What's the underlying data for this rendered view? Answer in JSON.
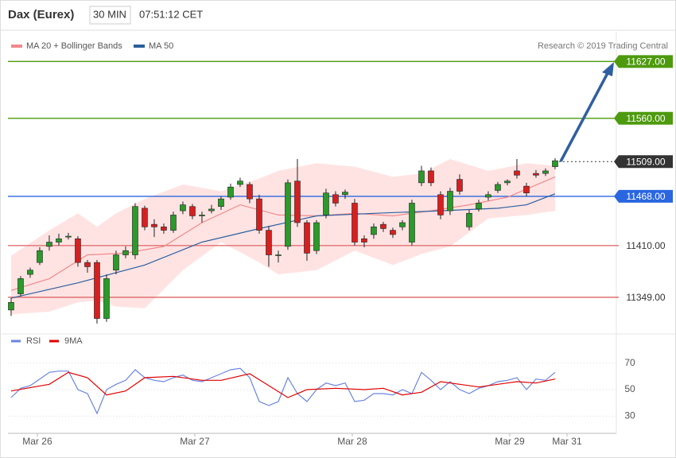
{
  "chart_data": [
    {
      "type": "candlestick",
      "title": "Dax (Eurex)",
      "interval": "30 MIN",
      "time": "07:51:12 CET",
      "source": "Research © 2019 Trading Central",
      "xlim": [
        -0.33,
        63.42
      ],
      "ylim": [
        11287,
        11662
      ],
      "up_color": "#2a9a2a",
      "down_color": "#d62020",
      "open": [
        11334,
        11353,
        11376,
        11390,
        11409,
        11414,
        11420,
        11418,
        11390,
        11390,
        11324,
        11381,
        11399,
        11399,
        11454,
        11435,
        11432,
        11428,
        11451,
        11456,
        11445,
        11451,
        11456,
        11467,
        11482,
        11482,
        11465,
        11428,
        11399,
        11409,
        11486,
        11437,
        11404,
        11446,
        11470,
        11470,
        11460,
        11418,
        11423,
        11435,
        11428,
        11432,
        11414,
        11484,
        11498,
        11470,
        11451,
        11488,
        11432,
        11453,
        11467,
        11475,
        11484,
        11498,
        11480,
        11495,
        11495,
        11503
      ],
      "high": [
        11348,
        11374,
        11384,
        11408,
        11422,
        11424,
        11425,
        11421,
        11393,
        11393,
        11376,
        11404,
        11409,
        11460,
        11457,
        11441,
        11436,
        11450,
        11462,
        11459,
        11450,
        11458,
        11468,
        11483,
        11490,
        11485,
        11470,
        11433,
        11404,
        11488,
        11512,
        11440,
        11440,
        11477,
        11474,
        11476,
        11465,
        11422,
        11436,
        11438,
        11431,
        11440,
        11464,
        11504,
        11502,
        11474,
        11478,
        11494,
        11452,
        11464,
        11474,
        11485,
        11488,
        11512,
        11484,
        11499,
        11501,
        11513
      ],
      "low": [
        11327,
        11350,
        11372,
        11387,
        11404,
        11410,
        11417,
        11385,
        11378,
        11318,
        11320,
        11376,
        11395,
        11394,
        11428,
        11420,
        11424,
        11425,
        11447,
        11441,
        11437,
        11448,
        11452,
        11464,
        11479,
        11460,
        11424,
        11385,
        11390,
        11405,
        11432,
        11392,
        11400,
        11442,
        11456,
        11465,
        11410,
        11408,
        11418,
        11426,
        11419,
        11428,
        11410,
        11480,
        11480,
        11441,
        11446,
        11470,
        11428,
        11450,
        11463,
        11472,
        11481,
        11489,
        11468,
        11490,
        11492,
        11500
      ],
      "close": [
        11343,
        11371,
        11381,
        11404,
        11414,
        11418,
        11421,
        11390,
        11385,
        11324,
        11371,
        11399,
        11404,
        11456,
        11432,
        11432,
        11428,
        11446,
        11458,
        11445,
        11446,
        11453,
        11465,
        11479,
        11486,
        11465,
        11428,
        11399,
        11399,
        11484,
        11437,
        11401,
        11437,
        11472,
        11460,
        11473,
        11414,
        11414,
        11432,
        11430,
        11423,
        11437,
        11460,
        11498,
        11484,
        11446,
        11474,
        11474,
        11448,
        11460,
        11470,
        11482,
        11486,
        11493,
        11472,
        11493,
        11498,
        11510
      ],
      "bands": {
        "color": "#ffe3e3",
        "x": [
          0,
          4,
          7,
          9,
          11,
          14,
          18,
          22,
          26,
          28,
          32,
          36,
          40,
          43,
          46,
          50,
          54,
          57
        ],
        "upper": [
          11398,
          11428,
          11448,
          11432,
          11448,
          11465,
          11482,
          11474,
          11489,
          11498,
          11507,
          11503,
          11491,
          11495,
          11512,
          11498,
          11507,
          11504
        ],
        "lower": [
          11329,
          11332,
          11343,
          11345,
          11338,
          11336,
          11381,
          11414,
          11390,
          11376,
          11381,
          11404,
          11387,
          11400,
          11409,
          11442,
          11446,
          11451
        ]
      },
      "series": [
        {
          "name": "MA 20 + Bollinger Bands",
          "color": "#f08a8a",
          "x": [
            0,
            4,
            8,
            12,
            16,
            20,
            24,
            28,
            32,
            36,
            40,
            44,
            48,
            52,
            57
          ],
          "values": [
            11357,
            11371,
            11399,
            11401,
            11409,
            11437,
            11458,
            11446,
            11445,
            11448,
            11445,
            11451,
            11458,
            11467,
            11491
          ]
        },
        {
          "name": "MA 50",
          "color": "#2c5f9e",
          "x": [
            0,
            7,
            14,
            20,
            26,
            32,
            38,
            45,
            51,
            54,
            57
          ],
          "values": [
            11348,
            11366,
            11387,
            11414,
            11430,
            11445,
            11448,
            11451,
            11454,
            11458,
            11471
          ]
        }
      ],
      "levels": [
        {
          "value": 11627,
          "label": "11627.00",
          "color": "#4d9a0e",
          "line": "solid",
          "box": true
        },
        {
          "value": 11560,
          "label": "11560.00",
          "color": "#4d9a0e",
          "line": "solid",
          "box": true
        },
        {
          "value": 11509,
          "label": "11509.00",
          "color": "#333333",
          "line": "dotted",
          "box": true
        },
        {
          "value": 11468,
          "label": "11468.00",
          "color": "#2a66e0",
          "line": "solid",
          "box": true
        },
        {
          "value": 11410,
          "label": "11410.00",
          "color": "#e07070",
          "line": "solid",
          "box": false
        },
        {
          "value": 11349,
          "label": "11349.00",
          "color": "#e07070",
          "line": "solid",
          "box": false
        }
      ]
    },
    {
      "type": "line",
      "xlim": [
        -0.33,
        63.42
      ],
      "ylim": [
        17,
        77
      ],
      "yticks": [
        30,
        50,
        70
      ],
      "xticks": [
        {
          "value": 2.75,
          "label": "Mar 26"
        },
        {
          "value": 19.25,
          "label": "Mar 27"
        },
        {
          "value": 35.75,
          "label": "Mar 28"
        },
        {
          "value": 52.25,
          "label": "Mar 29"
        },
        {
          "value": 58.25,
          "label": "Mar 31"
        }
      ],
      "series": [
        {
          "name": "RSI",
          "color": "#6a84e0",
          "values": [
            44,
            51,
            53,
            58,
            63,
            64,
            64,
            50,
            47,
            32,
            50,
            54,
            57,
            65,
            59,
            57,
            56,
            59,
            61,
            57,
            56,
            59,
            62,
            65,
            66,
            59,
            41,
            38,
            41,
            59,
            47,
            41,
            50,
            55,
            53,
            55,
            41,
            42,
            47,
            47,
            46,
            50,
            47,
            63,
            57,
            50,
            56,
            50,
            47,
            51,
            53,
            56,
            57,
            59,
            50,
            58,
            57,
            63
          ]
        },
        {
          "name": "9MA",
          "color": "#e00000",
          "x": [
            0,
            4,
            6,
            8,
            10,
            12,
            14,
            17,
            20,
            22,
            25,
            27,
            29,
            31,
            34,
            37,
            39,
            41,
            43,
            45,
            47,
            49,
            51,
            53,
            55,
            57
          ],
          "values": [
            49,
            54,
            63,
            59,
            46,
            49,
            59,
            60,
            57,
            57,
            62,
            53,
            44,
            50,
            51,
            50,
            51,
            46,
            48,
            56,
            54,
            52,
            54,
            56,
            55,
            58
          ]
        }
      ]
    }
  ]
}
